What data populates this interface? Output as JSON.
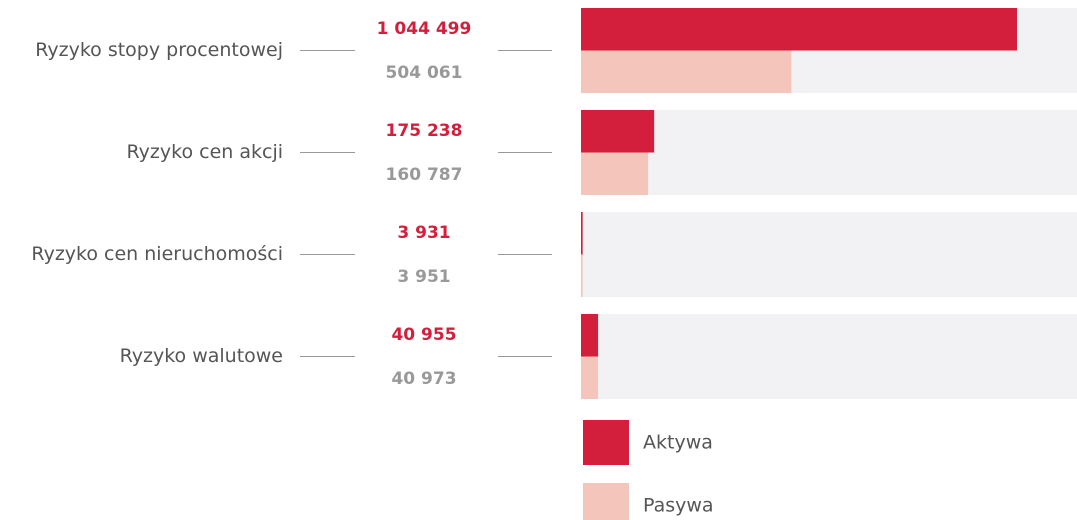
{
  "chart_data": {
    "type": "bar",
    "orientation": "horizontal",
    "categories": [
      "Ryzyko stopy procentowej",
      "Ryzyko cen akcji",
      "Ryzyko cen nieruchomości",
      "Ryzyko walutowe"
    ],
    "series": [
      {
        "name": "Aktywa",
        "color": "#d31f3b",
        "values": [
          1044499,
          175238,
          3931,
          40955
        ],
        "value_labels": [
          "1 044 499",
          "175 238",
          "3 931",
          "40 955"
        ]
      },
      {
        "name": "Pasywa",
        "color": "#f3c5bb",
        "values": [
          504061,
          160787,
          3951,
          40973
        ],
        "value_labels": [
          "504 061",
          "160 787",
          "3 951",
          "40 973"
        ]
      }
    ]
  }
}
